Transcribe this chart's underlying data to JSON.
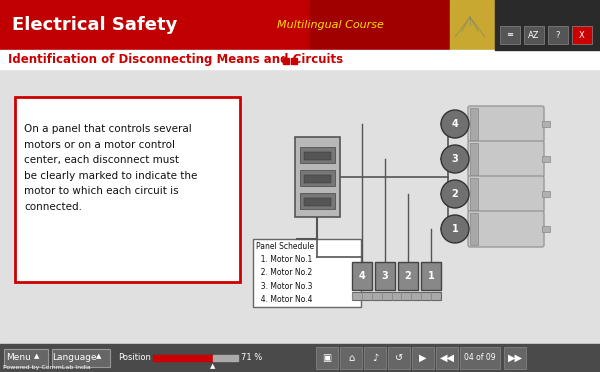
{
  "title": "Electrical Safety",
  "subtitle": "Multilingual Course",
  "slide_title": "Identification of Disconnecting Means and Circuits",
  "header_bg": "#cc0000",
  "content_bg": "#e8e8e8",
  "body_text": "On a panel that controls several\nmotors or on a motor control\ncenter, each disconnect must\nbe clearly marked to indicate the\nmotor to which each circuit is\nconnected.",
  "panel_schedule_text": "Panel Schedule\n  1. Motor No.1\n  2. Motor No.2\n  3. Motor No.3\n  4. Motor No.4",
  "footer_bg": "#4a4a4a",
  "footer_text": "Powered by CommLab India",
  "position_text": "Position",
  "position_pct": "71 %",
  "page_text": "04 of 09",
  "red_accent": "#cc0000",
  "white": "#ffffff",
  "gold": "#c8a000",
  "dark_panel": "#333333",
  "motor_grey": "#b0b0b0",
  "motor_dark": "#888888",
  "wire_color": "#555555",
  "switch_color": "#777777",
  "light_grey": "#cccccc"
}
